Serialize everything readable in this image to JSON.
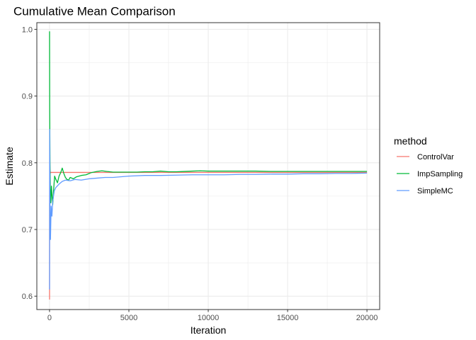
{
  "chart_data": {
    "type": "line",
    "title": "Cumulative Mean Comparison",
    "xlabel": "Iteration",
    "ylabel": "Estimate",
    "xlim": [
      -800,
      20800
    ],
    "ylim": [
      0.58,
      1.01
    ],
    "x_ticks": [
      0,
      5000,
      10000,
      15000,
      20000
    ],
    "x_tick_labels": [
      "0",
      "5000",
      "10000",
      "15000",
      "20000"
    ],
    "y_ticks": [
      0.6,
      0.7,
      0.8,
      0.9,
      1.0
    ],
    "y_tick_labels": [
      "0.6",
      "0.7",
      "0.8",
      "0.9",
      "1.0"
    ],
    "grid": true,
    "legend": {
      "title": "method",
      "position": "right"
    },
    "series": [
      {
        "name": "ControlVar",
        "color": "#F8766D",
        "x": [
          1,
          5,
          10,
          20,
          40,
          70,
          100,
          200,
          400,
          700,
          1000,
          2000,
          5000,
          10000,
          15000,
          20000
        ],
        "y": [
          0.595,
          0.72,
          0.77,
          0.79,
          0.787,
          0.785,
          0.7855,
          0.7855,
          0.7855,
          0.7855,
          0.7855,
          0.7855,
          0.7855,
          0.7855,
          0.7855,
          0.7855
        ]
      },
      {
        "name": "ImpSampling",
        "color": "#00BA38",
        "x": [
          1,
          10,
          30,
          50,
          80,
          120,
          160,
          200,
          260,
          320,
          400,
          500,
          600,
          700,
          800,
          900,
          1000,
          1100,
          1200,
          1300,
          1500,
          1700,
          2000,
          2300,
          2600,
          3000,
          3300,
          3600,
          4000,
          4500,
          5000,
          5500,
          6000,
          6500,
          7000,
          7500,
          8000,
          9000,
          9500,
          10000,
          11000,
          12000,
          13000,
          14000,
          15000,
          16000,
          17000,
          18000,
          19000,
          20000
        ],
        "y": [
          0.997,
          0.88,
          0.8,
          0.76,
          0.74,
          0.765,
          0.75,
          0.737,
          0.76,
          0.78,
          0.775,
          0.77,
          0.78,
          0.785,
          0.792,
          0.784,
          0.778,
          0.775,
          0.774,
          0.778,
          0.776,
          0.779,
          0.781,
          0.782,
          0.785,
          0.787,
          0.788,
          0.787,
          0.786,
          0.786,
          0.786,
          0.786,
          0.7865,
          0.7865,
          0.7875,
          0.7865,
          0.7865,
          0.7875,
          0.788,
          0.7875,
          0.7875,
          0.7875,
          0.7875,
          0.787,
          0.787,
          0.787,
          0.787,
          0.787,
          0.787,
          0.787
        ]
      },
      {
        "name": "SimpleMC",
        "color": "#619CFF",
        "x": [
          1,
          10,
          30,
          60,
          100,
          150,
          200,
          300,
          400,
          600,
          800,
          1000,
          1300,
          1600,
          2000,
          2500,
          3000,
          3500,
          4000,
          5000,
          6000,
          7000,
          8000,
          9000,
          10000,
          11000,
          12000,
          13000,
          14000,
          15000,
          16000,
          17000,
          18000,
          19000,
          20000
        ],
        "y": [
          0.61,
          0.85,
          0.73,
          0.685,
          0.735,
          0.72,
          0.742,
          0.758,
          0.763,
          0.768,
          0.772,
          0.774,
          0.773,
          0.775,
          0.774,
          0.776,
          0.777,
          0.778,
          0.778,
          0.78,
          0.781,
          0.781,
          0.7815,
          0.782,
          0.782,
          0.782,
          0.7825,
          0.7825,
          0.783,
          0.783,
          0.7835,
          0.7835,
          0.784,
          0.784,
          0.7845
        ]
      }
    ]
  }
}
